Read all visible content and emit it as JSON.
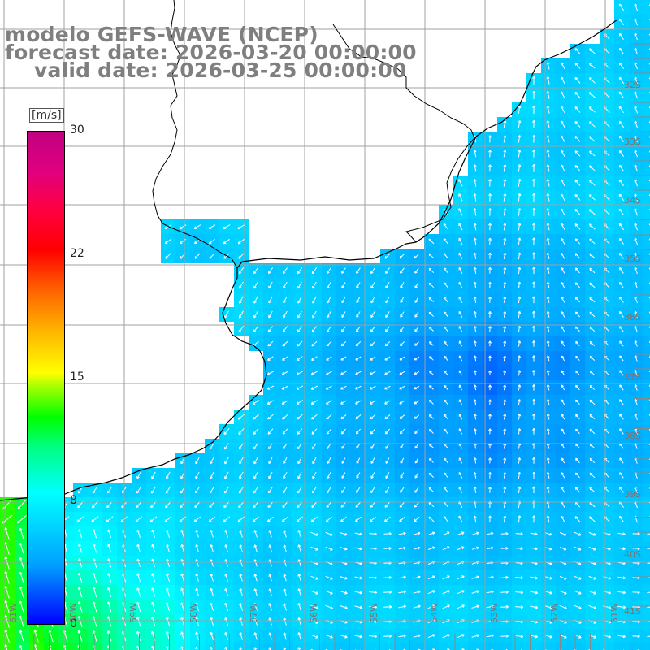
{
  "title": {
    "line1": "modelo GEFS-WAVE (NCEP)",
    "line2": "forecast date: 2026-03-20 00:00:00",
    "line3": "valid date: 2026-03-25 00:00:00"
  },
  "colorbar": {
    "unit": "[m/s]",
    "min": 0,
    "max": 30,
    "ticks": [
      "30",
      "22",
      "15",
      "8",
      "0"
    ],
    "tick_values": [
      30,
      22,
      15,
      8,
      0
    ],
    "colors": {
      "low": "#0000ff",
      "mid": "#00ffff",
      "green": "#00ff00",
      "yellow": "#ffff00",
      "red": "#ff0000",
      "high": "#c00080"
    }
  },
  "lat_labels": [
    "32S",
    "33S",
    "34S",
    "35S",
    "36S",
    "37S",
    "38S",
    "39S",
    "40S",
    "41S"
  ],
  "lon_labels": [
    "61W",
    "60W",
    "59W",
    "58W",
    "57W",
    "56W",
    "55W",
    "54W",
    "53W",
    "52W",
    "51W"
  ],
  "colors": {
    "land": "#ffffff",
    "grid": "#a0a0a0",
    "coast": "#000000",
    "arrow": "#ffffff",
    "title": "#7f7f7f"
  }
}
